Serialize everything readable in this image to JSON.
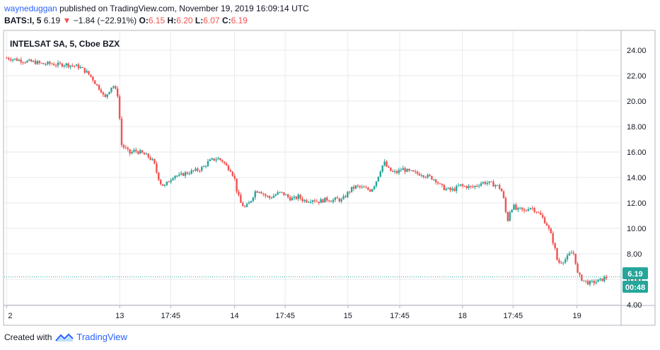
{
  "header": {
    "author": "wayneduggan",
    "published_text": " published on TradingView.com, November 19, 2019 16:09:14 UTC",
    "symbol_line": "BATS:I, 5",
    "last": "6.19",
    "change_arrow": "▼",
    "change": "−1.84 (−22.91%)",
    "o_label": "O:",
    "o_val": "6.15",
    "h_label": "H:",
    "h_val": "6.20",
    "l_label": "L:",
    "l_val": "6.07",
    "c_label": "C:",
    "c_val": "6.19"
  },
  "footer": {
    "created_with": "Created with",
    "brand": "TradingView"
  },
  "colors": {
    "up": "#26a69a",
    "down": "#ef5350",
    "grid": "#e6e9ee",
    "axis_text": "#131722",
    "price_line": "#26a69a"
  },
  "chart_data": {
    "type": "candlestick",
    "title": "INTELSAT SA, 5, Cboe BZX",
    "ylim": [
      4.0,
      25.5
    ],
    "y_ticks": [
      "24.00",
      "22.00",
      "20.00",
      "18.00",
      "16.00",
      "14.00",
      "12.00",
      "10.00",
      "8.00",
      "6.00",
      "4.00"
    ],
    "x_ticks": [
      {
        "label": "2",
        "x": 0.0
      },
      {
        "label": "13",
        "x": 9.38
      },
      {
        "label": "17:45",
        "x": 13.6
      },
      {
        "label": "14",
        "x": 18.9
      },
      {
        "label": "17:45",
        "x": 23.1
      },
      {
        "label": "15",
        "x": 28.3
      },
      {
        "label": "17:45",
        "x": 32.6
      },
      {
        "label": "18",
        "x": 37.8
      },
      {
        "label": "17:45",
        "x": 42.0
      },
      {
        "label": "19",
        "x": 47.3
      }
    ],
    "x_range": [
      -0.2,
      50.9
    ],
    "last_price": 6.19,
    "last_price_label": "6.19",
    "countdown": "00:48",
    "grid": true,
    "price_path": [
      [
        0.0,
        23.4
      ],
      [
        0.6,
        23.3
      ],
      [
        1.2,
        23.2
      ],
      [
        1.8,
        23.1
      ],
      [
        2.4,
        23.05
      ],
      [
        3.0,
        22.9
      ],
      [
        3.6,
        22.95
      ],
      [
        4.2,
        22.85
      ],
      [
        4.8,
        22.9
      ],
      [
        5.4,
        22.8
      ],
      [
        6.0,
        22.7
      ],
      [
        6.6,
        22.3
      ],
      [
        7.1,
        21.8
      ],
      [
        7.5,
        21.2
      ],
      [
        7.9,
        20.8
      ],
      [
        8.1,
        20.1
      ],
      [
        8.4,
        20.7
      ],
      [
        8.8,
        21.3
      ],
      [
        9.2,
        20.5
      ],
      [
        9.38,
        18.5
      ],
      [
        9.5,
        16.6
      ],
      [
        9.8,
        16.3
      ],
      [
        10.2,
        15.9
      ],
      [
        10.6,
        16.1
      ],
      [
        11.0,
        16.0
      ],
      [
        11.4,
        15.8
      ],
      [
        11.8,
        15.6
      ],
      [
        12.2,
        15.2
      ],
      [
        12.5,
        14.2
      ],
      [
        12.8,
        13.5
      ],
      [
        13.1,
        13.3
      ],
      [
        13.5,
        13.8
      ],
      [
        13.9,
        14.2
      ],
      [
        14.3,
        14.1
      ],
      [
        14.7,
        14.3
      ],
      [
        15.1,
        14.4
      ],
      [
        15.5,
        14.5
      ],
      [
        15.9,
        14.6
      ],
      [
        16.3,
        14.8
      ],
      [
        16.7,
        15.2
      ],
      [
        17.1,
        15.4
      ],
      [
        17.5,
        15.5
      ],
      [
        17.9,
        15.3
      ],
      [
        18.2,
        14.9
      ],
      [
        18.6,
        14.6
      ],
      [
        18.9,
        13.9
      ],
      [
        19.1,
        12.9
      ],
      [
        19.4,
        12.0
      ],
      [
        19.8,
        11.6
      ],
      [
        20.2,
        12.1
      ],
      [
        20.6,
        12.9
      ],
      [
        21.0,
        13.0
      ],
      [
        21.4,
        12.6
      ],
      [
        21.8,
        12.4
      ],
      [
        22.2,
        12.6
      ],
      [
        22.6,
        12.8
      ],
      [
        23.0,
        12.7
      ],
      [
        23.4,
        12.4
      ],
      [
        23.8,
        12.3
      ],
      [
        24.2,
        12.5
      ],
      [
        24.6,
        12.2
      ],
      [
        25.0,
        12.2
      ],
      [
        25.4,
        12.3
      ],
      [
        25.8,
        12.1
      ],
      [
        26.2,
        12.2
      ],
      [
        26.6,
        12.3
      ],
      [
        27.0,
        12.2
      ],
      [
        27.4,
        12.3
      ],
      [
        27.8,
        12.2
      ],
      [
        28.3,
        12.8
      ],
      [
        28.6,
        13.1
      ],
      [
        29.0,
        13.3
      ],
      [
        29.4,
        13.2
      ],
      [
        29.8,
        13.1
      ],
      [
        30.2,
        13.0
      ],
      [
        30.6,
        13.6
      ],
      [
        31.0,
        14.6
      ],
      [
        31.3,
        15.2
      ],
      [
        31.6,
        14.7
      ],
      [
        32.0,
        14.4
      ],
      [
        32.4,
        14.4
      ],
      [
        32.8,
        14.7
      ],
      [
        33.2,
        14.5
      ],
      [
        33.6,
        14.4
      ],
      [
        34.0,
        14.3
      ],
      [
        34.4,
        14.3
      ],
      [
        34.8,
        14.1
      ],
      [
        35.2,
        14.0
      ],
      [
        35.6,
        13.8
      ],
      [
        36.0,
        13.3
      ],
      [
        36.4,
        13.1
      ],
      [
        36.8,
        13.0
      ],
      [
        37.2,
        13.1
      ],
      [
        37.6,
        13.4
      ],
      [
        37.8,
        13.3
      ],
      [
        38.2,
        13.3
      ],
      [
        38.6,
        13.2
      ],
      [
        39.0,
        13.4
      ],
      [
        39.4,
        13.6
      ],
      [
        39.8,
        13.6
      ],
      [
        40.2,
        13.5
      ],
      [
        40.6,
        13.4
      ],
      [
        41.0,
        13.1
      ],
      [
        41.3,
        12.0
      ],
      [
        41.5,
        10.4
      ],
      [
        41.7,
        11.3
      ],
      [
        42.0,
        11.8
      ],
      [
        42.3,
        11.4
      ],
      [
        42.6,
        11.5
      ],
      [
        43.0,
        11.3
      ],
      [
        43.3,
        11.7
      ],
      [
        43.6,
        11.6
      ],
      [
        44.0,
        11.3
      ],
      [
        44.4,
        10.9
      ],
      [
        44.8,
        10.3
      ],
      [
        45.1,
        9.6
      ],
      [
        45.4,
        8.7
      ],
      [
        45.7,
        7.3
      ],
      [
        46.0,
        7.4
      ],
      [
        46.4,
        7.6
      ],
      [
        46.8,
        8.1
      ],
      [
        47.1,
        8.0
      ],
      [
        47.3,
        6.5
      ],
      [
        47.6,
        6.1
      ],
      [
        48.0,
        5.8
      ],
      [
        48.4,
        5.7
      ],
      [
        48.8,
        5.8
      ],
      [
        49.2,
        5.9
      ],
      [
        49.6,
        6.1
      ],
      [
        49.9,
        6.19
      ]
    ]
  }
}
